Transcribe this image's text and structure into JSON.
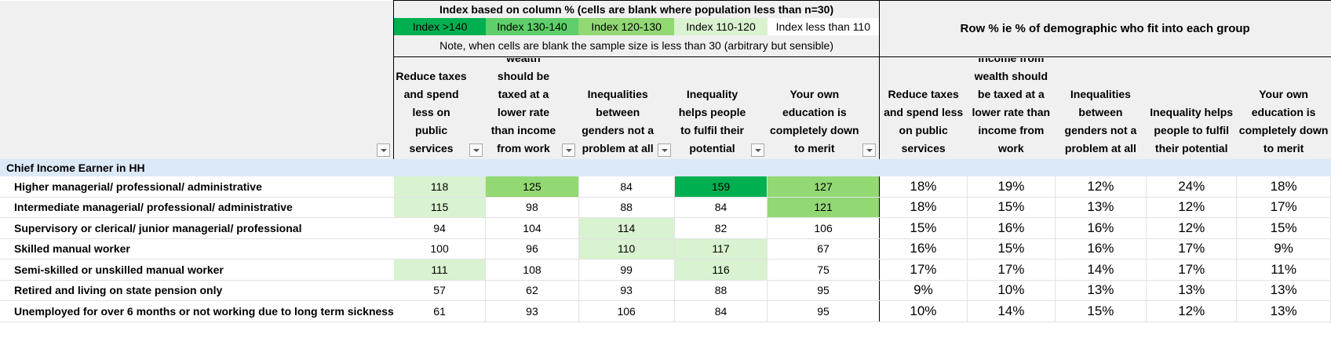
{
  "legend": {
    "title": "Index based on column % (cells are blank where population less than n=30)",
    "bands": [
      {
        "label": "Index >140",
        "color": "#00b050"
      },
      {
        "label": "Index 130-140",
        "color": "#5ecf6a"
      },
      {
        "label": "Index 120-130",
        "color": "#92d873"
      },
      {
        "label": "Index 110-120",
        "color": "#d9f2d0"
      },
      {
        "label": "Index less than 110",
        "color": "#ffffff"
      }
    ],
    "note": "Note, when cells are blank the sample size is less than 30 (arbitrary but sensible)"
  },
  "row_pct_title": "Row % ie % of demographic who fit into each group",
  "index_headers": [
    "Reduce taxes and spend less on public services",
    "Income from wealth should be taxed at a lower rate than income from work",
    "Inequalities between genders not a problem at all",
    "Inequality helps people to fulfil their potential",
    "Your own education is completely down to merit"
  ],
  "pct_headers": [
    "Reduce taxes and spend less on public services",
    "Income from wealth should be taxed at a lower rate than income from work",
    "Inequalities between genders not a problem at all",
    "Inequality helps people to fulfil their potential",
    "Your own education is completely down to merit"
  ],
  "section_label": "Chief Income Earner in HH",
  "rows": [
    {
      "label": "Higher managerial/ professional/ administrative",
      "index": [
        118,
        125,
        84,
        159,
        127
      ],
      "pct": [
        "18%",
        "19%",
        "12%",
        "24%",
        "18%"
      ]
    },
    {
      "label": "Intermediate managerial/ professional/ administrative",
      "index": [
        115,
        98,
        88,
        84,
        121
      ],
      "pct": [
        "18%",
        "15%",
        "13%",
        "12%",
        "17%"
      ]
    },
    {
      "label": "Supervisory or clerical/ junior managerial/ professional",
      "index": [
        94,
        104,
        114,
        82,
        106
      ],
      "pct": [
        "15%",
        "16%",
        "16%",
        "12%",
        "15%"
      ]
    },
    {
      "label": "Skilled manual worker",
      "index": [
        100,
        96,
        110,
        117,
        67
      ],
      "pct": [
        "16%",
        "15%",
        "16%",
        "17%",
        "9%"
      ]
    },
    {
      "label": "Semi-skilled or unskilled manual worker",
      "index": [
        111,
        108,
        99,
        116,
        75
      ],
      "pct": [
        "17%",
        "17%",
        "14%",
        "17%",
        "11%"
      ]
    },
    {
      "label": "Retired and living on state pension only",
      "index": [
        57,
        62,
        93,
        88,
        95
      ],
      "pct": [
        "9%",
        "10%",
        "13%",
        "13%",
        "13%"
      ]
    },
    {
      "label": "Unemployed for over 6 months or not working due to long term sickness",
      "index": [
        61,
        93,
        106,
        84,
        95
      ],
      "pct": [
        "10%",
        "14%",
        "15%",
        "12%",
        "13%"
      ]
    }
  ]
}
